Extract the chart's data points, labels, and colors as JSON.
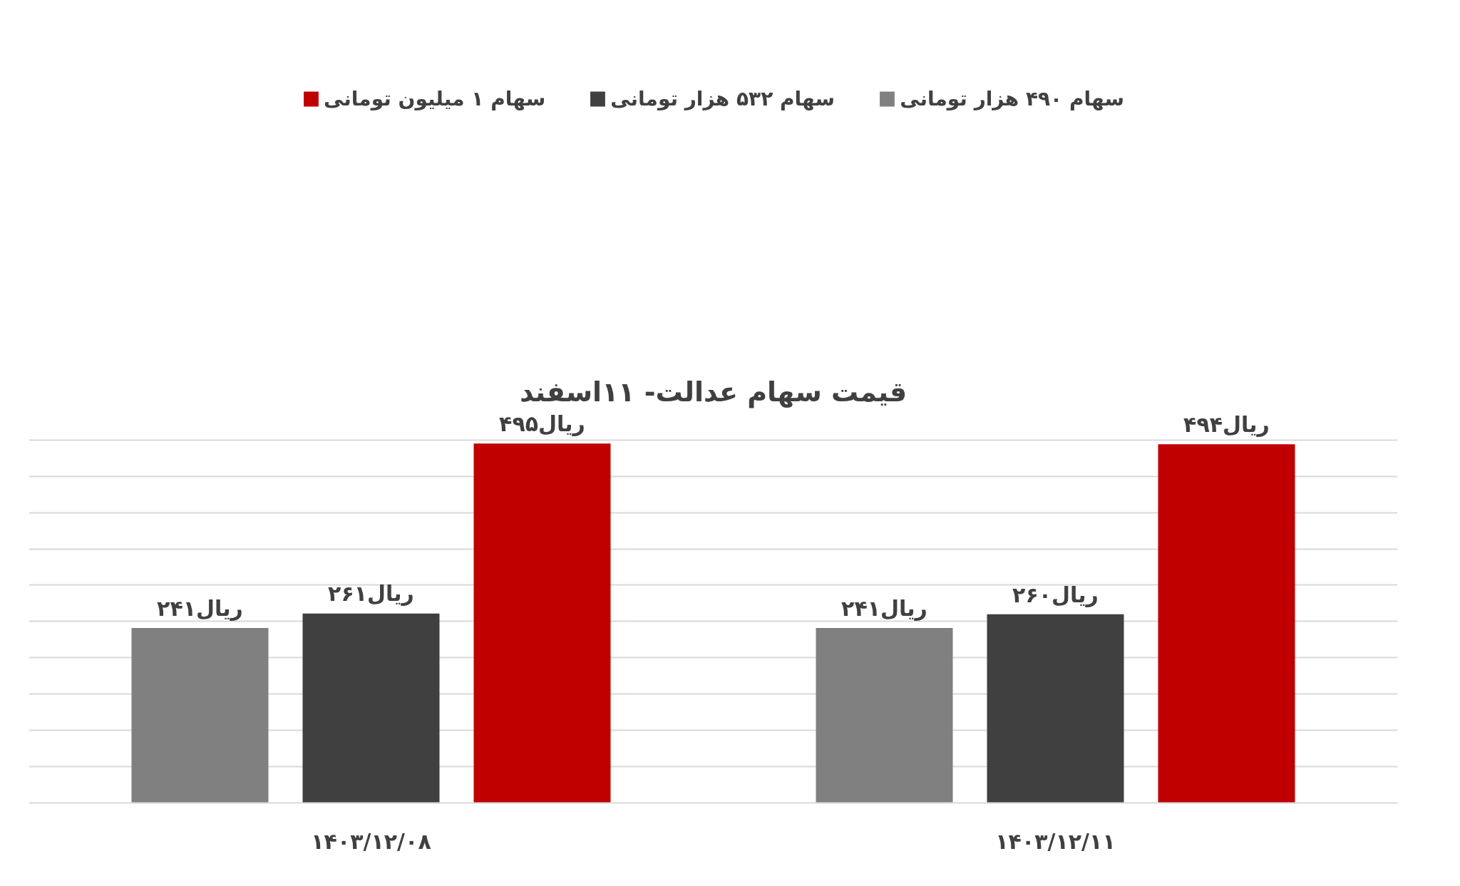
{
  "chart_data": {
    "type": "bar",
    "title": "قیمت سهام عدالت- ۱۱اسفند",
    "categories": [
      "۱۴۰۳/۱۲/۰۸",
      "۱۴۰۳/۱۲/۱۱"
    ],
    "series": [
      {
        "name": "سهام ۴۹۰ هزار تومانی",
        "color": "#808080",
        "values": [
          241,
          241
        ],
        "value_labels": [
          "ریال۲۴۱",
          "ریال۲۴۱"
        ]
      },
      {
        "name": "سهام ۵۳۲ هزار تومانی",
        "color": "#404040",
        "values": [
          261,
          260
        ],
        "value_labels": [
          "ریال۲۶۱",
          "ریال۲۶۰"
        ]
      },
      {
        "name": "سهام ۱ میلیون تومانی",
        "color": "#c00000",
        "values": [
          495,
          494
        ],
        "value_labels": [
          "ریال۴۹۵",
          "ریال۴۹۴"
        ]
      }
    ],
    "ylim": [
      0,
      500
    ],
    "yticks": [
      {
        "value": 0,
        "label": null
      },
      {
        "value": 50,
        "label": null
      },
      {
        "value": 100,
        "label": null
      },
      {
        "value": 150,
        "label": null
      },
      {
        "value": 200,
        "label": null
      },
      {
        "value": 250,
        "label": null
      },
      {
        "value": 300,
        "label": null
      },
      {
        "value": 350,
        "label": null
      },
      {
        "value": 400,
        "label": null
      },
      {
        "value": 450,
        "label": null
      },
      {
        "value": 500,
        "label": null
      }
    ],
    "tick_labels": "x",
    "grid": "y",
    "legend": "top"
  }
}
